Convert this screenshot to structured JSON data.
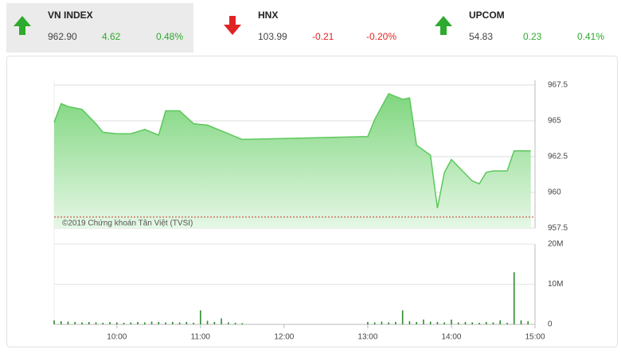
{
  "header": {
    "indices": [
      {
        "name": "VN INDEX",
        "value": "962.90",
        "change": "4.62",
        "percent": "0.48%"
      },
      {
        "name": "HNX",
        "value": "103.99",
        "change": "-0.21",
        "percent": "-0.20%"
      },
      {
        "name": "UPCOM",
        "value": "54.83",
        "change": "0.23",
        "percent": "0.41%"
      }
    ]
  },
  "chart_data": {
    "type": "area",
    "color": "#5cc85c",
    "x": [
      555,
      560,
      565,
      575,
      585,
      590,
      600,
      610,
      620,
      630,
      635,
      645,
      655,
      665,
      680,
      690,
      780,
      785,
      795,
      805,
      810,
      815,
      825,
      830,
      835,
      840,
      845,
      850,
      855,
      860,
      865,
      870,
      880,
      885,
      897
    ],
    "values": [
      964.9,
      966.2,
      966.0,
      965.8,
      964.8,
      964.2,
      964.1,
      964.1,
      964.4,
      964.0,
      965.7,
      965.7,
      964.8,
      964.7,
      964.1,
      963.7,
      963.9,
      965.1,
      966.9,
      966.5,
      966.6,
      963.3,
      962.6,
      958.9,
      961.4,
      962.3,
      961.8,
      961.3,
      960.8,
      960.6,
      961.4,
      961.5,
      961.5,
      962.9,
      962.9
    ],
    "xlim": [
      555,
      900
    ],
    "xticks": [
      {
        "value": 600,
        "label": "10:00"
      },
      {
        "value": 660,
        "label": "11:00"
      },
      {
        "value": 720,
        "label": "12:00"
      },
      {
        "value": 780,
        "label": "13:00"
      },
      {
        "value": 840,
        "label": "14:00"
      },
      {
        "value": 900,
        "label": "15:00"
      }
    ],
    "ylim": [
      957.5,
      967.5
    ],
    "yticks": [
      957.5,
      960,
      962.5,
      965,
      967.5
    ],
    "grid": true,
    "ref_line": 958.28,
    "ref_color": "#c0392b",
    "watermark": "©2019 Chứng khoán Tân Việt (TVSI)",
    "volume": {
      "type": "bar",
      "color": "#2e8b2e",
      "x": [
        555,
        560,
        565,
        570,
        575,
        580,
        585,
        590,
        595,
        600,
        605,
        610,
        615,
        620,
        625,
        630,
        635,
        640,
        645,
        650,
        655,
        660,
        665,
        670,
        675,
        680,
        685,
        690,
        780,
        785,
        790,
        795,
        800,
        805,
        810,
        815,
        820,
        825,
        830,
        835,
        840,
        845,
        850,
        855,
        860,
        865,
        870,
        875,
        880,
        885,
        890,
        895
      ],
      "values": [
        1.0,
        0.8,
        0.7,
        0.6,
        0.5,
        0.6,
        0.5,
        0.4,
        0.6,
        0.5,
        0.4,
        0.5,
        0.6,
        0.5,
        0.7,
        0.6,
        0.5,
        0.6,
        0.5,
        0.6,
        0.4,
        3.5,
        0.9,
        0.6,
        1.5,
        0.5,
        0.4,
        0.3,
        0.6,
        0.5,
        0.7,
        0.5,
        0.6,
        3.5,
        0.8,
        0.6,
        1.2,
        0.7,
        0.6,
        0.5,
        1.2,
        0.5,
        0.6,
        0.5,
        0.4,
        0.6,
        0.5,
        1.0,
        0.4,
        13,
        1.0,
        0.8
      ],
      "ylim": [
        0,
        20
      ],
      "yticks": [
        0,
        {
          "value": 10,
          "label": "10M"
        },
        {
          "value": 20,
          "label": "20M"
        }
      ]
    }
  }
}
